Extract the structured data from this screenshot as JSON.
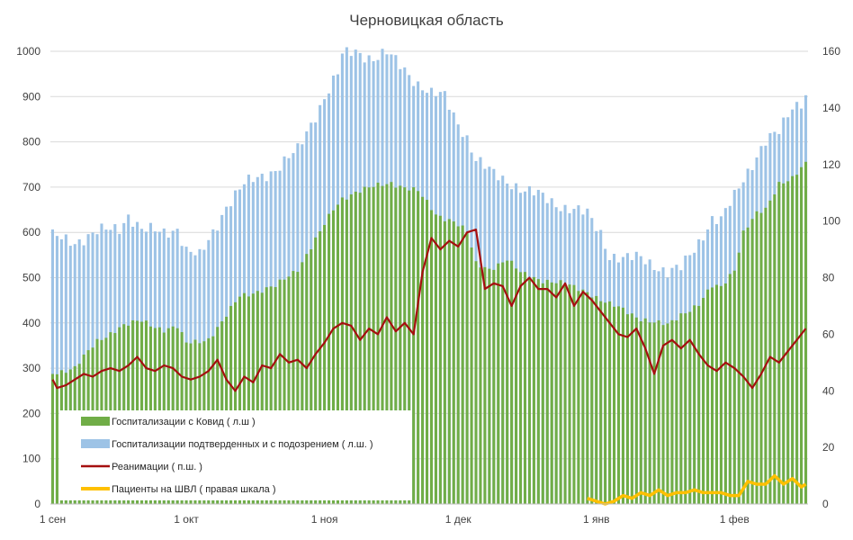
{
  "chart_data": {
    "type": "bar",
    "title": "Черновицкая область",
    "y_left": {
      "ylim": [
        0,
        1000
      ],
      "ticks": [
        0,
        100,
        200,
        300,
        400,
        500,
        600,
        700,
        800,
        900,
        1000
      ]
    },
    "y_right": {
      "ylim": [
        0,
        160
      ],
      "ticks": [
        0,
        20,
        40,
        60,
        80,
        100,
        120,
        140,
        160
      ]
    },
    "x_ticks": [
      {
        "label": "1 сен",
        "day": 0
      },
      {
        "label": "1 окт",
        "day": 30
      },
      {
        "label": "1 ноя",
        "day": 61
      },
      {
        "label": "1 дек",
        "day": 91
      },
      {
        "label": "1 янв",
        "day": 122
      },
      {
        "label": "1 фев",
        "day": 153
      }
    ],
    "grid": "horizontal",
    "legend_position": "bottom-left",
    "colors": {
      "covid": "#70ad47",
      "confirmed_suspected": "#9dc3e6",
      "icu": "#a50f0f",
      "ventilator": "#ffc000"
    },
    "series": [
      {
        "name": "Госпитализации с Ковид ( л.ш )",
        "type": "bar",
        "axis": "left",
        "key": "covid",
        "anchors": [
          [
            0,
            290
          ],
          [
            5,
            300
          ],
          [
            10,
            360
          ],
          [
            15,
            390
          ],
          [
            20,
            405
          ],
          [
            25,
            385
          ],
          [
            28,
            390
          ],
          [
            30,
            355
          ],
          [
            35,
            365
          ],
          [
            38,
            400
          ],
          [
            42,
            460
          ],
          [
            46,
            470
          ],
          [
            50,
            480
          ],
          [
            55,
            520
          ],
          [
            60,
            600
          ],
          [
            63,
            650
          ],
          [
            65,
            675
          ],
          [
            68,
            690
          ],
          [
            72,
            700
          ],
          [
            76,
            710
          ],
          [
            79,
            700
          ],
          [
            82,
            690
          ],
          [
            86,
            640
          ],
          [
            90,
            625
          ],
          [
            93,
            600
          ],
          [
            95,
            530
          ],
          [
            98,
            520
          ],
          [
            102,
            540
          ],
          [
            105,
            510
          ],
          [
            110,
            495
          ],
          [
            115,
            485
          ],
          [
            120,
            470
          ],
          [
            123,
            450
          ],
          [
            125,
            440
          ],
          [
            128,
            430
          ],
          [
            132,
            410
          ],
          [
            135,
            400
          ],
          [
            138,
            395
          ],
          [
            141,
            420
          ],
          [
            145,
            440
          ],
          [
            148,
            480
          ],
          [
            150,
            480
          ],
          [
            153,
            520
          ],
          [
            155,
            600
          ],
          [
            158,
            640
          ],
          [
            160,
            650
          ],
          [
            163,
            710
          ],
          [
            166,
            720
          ],
          [
            169,
            750
          ]
        ]
      },
      {
        "name": "Госпитализации подтверденных и с подозрением ( л.ш. )",
        "type": "bar",
        "axis": "left",
        "key": "confirmed_suspected",
        "anchors": [
          [
            0,
            590
          ],
          [
            5,
            580
          ],
          [
            10,
            600
          ],
          [
            15,
            610
          ],
          [
            17,
            640
          ],
          [
            20,
            605
          ],
          [
            25,
            600
          ],
          [
            28,
            610
          ],
          [
            30,
            560
          ],
          [
            33,
            545
          ],
          [
            36,
            600
          ],
          [
            39,
            660
          ],
          [
            43,
            705
          ],
          [
            46,
            720
          ],
          [
            50,
            740
          ],
          [
            55,
            780
          ],
          [
            58,
            840
          ],
          [
            61,
            900
          ],
          [
            64,
            950
          ],
          [
            65,
            990
          ],
          [
            68,
            1000
          ],
          [
            72,
            985
          ],
          [
            75,
            995
          ],
          [
            79,
            960
          ],
          [
            82,
            930
          ],
          [
            85,
            905
          ],
          [
            88,
            900
          ],
          [
            90,
            860
          ],
          [
            93,
            810
          ],
          [
            95,
            760
          ],
          [
            98,
            735
          ],
          [
            100,
            725
          ],
          [
            103,
            710
          ],
          [
            106,
            690
          ],
          [
            110,
            680
          ],
          [
            115,
            655
          ],
          [
            120,
            640
          ],
          [
            123,
            600
          ],
          [
            125,
            550
          ],
          [
            128,
            540
          ],
          [
            132,
            545
          ],
          [
            135,
            530
          ],
          [
            138,
            510
          ],
          [
            141,
            520
          ],
          [
            145,
            580
          ],
          [
            148,
            630
          ],
          [
            150,
            625
          ],
          [
            153,
            680
          ],
          [
            155,
            720
          ],
          [
            158,
            770
          ],
          [
            160,
            800
          ],
          [
            163,
            820
          ],
          [
            166,
            880
          ],
          [
            168,
            890
          ],
          [
            169,
            905
          ]
        ]
      },
      {
        "name": "Реанимации ( п.ш. )",
        "type": "line",
        "axis": "right",
        "key": "icu",
        "anchors": [
          [
            0,
            44
          ],
          [
            1,
            41
          ],
          [
            3,
            42
          ],
          [
            5,
            44
          ],
          [
            7,
            46
          ],
          [
            9,
            45
          ],
          [
            11,
            47
          ],
          [
            13,
            48
          ],
          [
            15,
            47
          ],
          [
            17,
            49
          ],
          [
            19,
            52
          ],
          [
            21,
            48
          ],
          [
            23,
            47
          ],
          [
            25,
            49
          ],
          [
            27,
            48
          ],
          [
            29,
            45
          ],
          [
            31,
            44
          ],
          [
            33,
            45
          ],
          [
            35,
            47
          ],
          [
            37,
            51
          ],
          [
            39,
            44
          ],
          [
            41,
            40
          ],
          [
            43,
            45
          ],
          [
            45,
            43
          ],
          [
            47,
            49
          ],
          [
            49,
            48
          ],
          [
            51,
            53
          ],
          [
            53,
            50
          ],
          [
            55,
            51
          ],
          [
            57,
            48
          ],
          [
            59,
            53
          ],
          [
            61,
            57
          ],
          [
            63,
            62
          ],
          [
            65,
            64
          ],
          [
            67,
            63
          ],
          [
            69,
            58
          ],
          [
            71,
            62
          ],
          [
            73,
            60
          ],
          [
            75,
            66
          ],
          [
            77,
            61
          ],
          [
            79,
            64
          ],
          [
            81,
            60
          ],
          [
            83,
            82
          ],
          [
            85,
            94
          ],
          [
            87,
            90
          ],
          [
            89,
            93
          ],
          [
            91,
            91
          ],
          [
            93,
            96
          ],
          [
            95,
            97
          ],
          [
            97,
            76
          ],
          [
            99,
            78
          ],
          [
            101,
            77
          ],
          [
            103,
            70
          ],
          [
            105,
            77
          ],
          [
            107,
            80
          ],
          [
            109,
            76
          ],
          [
            111,
            76
          ],
          [
            113,
            73
          ],
          [
            115,
            78
          ],
          [
            117,
            70
          ],
          [
            119,
            75
          ],
          [
            121,
            72
          ],
          [
            123,
            68
          ],
          [
            125,
            64
          ],
          [
            127,
            60
          ],
          [
            129,
            59
          ],
          [
            131,
            62
          ],
          [
            133,
            55
          ],
          [
            135,
            46
          ],
          [
            137,
            56
          ],
          [
            139,
            58
          ],
          [
            141,
            55
          ],
          [
            143,
            58
          ],
          [
            145,
            53
          ],
          [
            147,
            49
          ],
          [
            149,
            47
          ],
          [
            151,
            50
          ],
          [
            153,
            48
          ],
          [
            155,
            45
          ],
          [
            157,
            41
          ],
          [
            159,
            46
          ],
          [
            161,
            52
          ],
          [
            163,
            50
          ],
          [
            165,
            54
          ],
          [
            167,
            58
          ],
          [
            169,
            62
          ]
        ]
      },
      {
        "name": "Пациенты на ШВЛ ( правая шкала )",
        "type": "line",
        "axis": "right",
        "key": "ventilator",
        "anchors": [
          [
            120,
            2
          ],
          [
            122,
            1
          ],
          [
            124,
            0
          ],
          [
            126,
            1
          ],
          [
            128,
            3
          ],
          [
            130,
            2
          ],
          [
            132,
            4
          ],
          [
            134,
            3
          ],
          [
            136,
            5
          ],
          [
            138,
            3
          ],
          [
            140,
            4
          ],
          [
            142,
            4
          ],
          [
            144,
            5
          ],
          [
            146,
            4
          ],
          [
            148,
            4
          ],
          [
            150,
            4
          ],
          [
            152,
            3
          ],
          [
            154,
            3
          ],
          [
            156,
            8
          ],
          [
            158,
            7
          ],
          [
            160,
            7
          ],
          [
            162,
            10
          ],
          [
            164,
            7
          ],
          [
            166,
            9
          ],
          [
            168,
            6
          ],
          [
            169,
            7
          ]
        ]
      }
    ]
  }
}
